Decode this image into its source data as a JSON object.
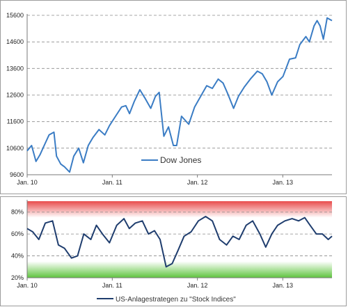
{
  "chart_data": [
    {
      "type": "line",
      "legend_position": "inside-lower-center",
      "grid": "horizontal-dashed",
      "colors": {
        "series": "#3a7cc4",
        "grid": "#8a8a8a",
        "axis": "#7a7a7a"
      },
      "ylim": [
        9600,
        15600
      ],
      "y_ticks": [
        9600,
        10600,
        11600,
        12600,
        13600,
        14600,
        15600
      ],
      "y_tick_labels": [
        "9600",
        "10600",
        "11600",
        "12600",
        "13600",
        "14600",
        "15600"
      ],
      "xlim": [
        "2010-01-01",
        "2013-07-31"
      ],
      "x_ticks": [
        "2010-01-01",
        "2011-01-01",
        "2012-01-01",
        "2013-01-01"
      ],
      "x_tick_labels": [
        "Jan. 10",
        "Jan. 11",
        "Jan. 12",
        "Jan. 13"
      ],
      "series": [
        {
          "name": "Dow Jones",
          "x": [
            "2010-01-01",
            "2010-01-20",
            "2010-02-08",
            "2010-02-25",
            "2010-03-15",
            "2010-04-05",
            "2010-04-26",
            "2010-05-07",
            "2010-05-25",
            "2010-06-10",
            "2010-07-02",
            "2010-07-20",
            "2010-08-10",
            "2010-08-30",
            "2010-09-20",
            "2010-10-10",
            "2010-11-05",
            "2010-11-30",
            "2010-12-20",
            "2011-01-15",
            "2011-02-10",
            "2011-02-28",
            "2011-03-16",
            "2011-04-05",
            "2011-04-29",
            "2011-05-20",
            "2011-06-15",
            "2011-07-05",
            "2011-07-21",
            "2011-08-10",
            "2011-08-30",
            "2011-09-20",
            "2011-10-04",
            "2011-10-25",
            "2011-11-25",
            "2011-12-20",
            "2012-01-15",
            "2012-02-10",
            "2012-03-05",
            "2012-03-30",
            "2012-04-20",
            "2012-05-10",
            "2012-06-04",
            "2012-06-25",
            "2012-07-20",
            "2012-08-15",
            "2012-09-14",
            "2012-10-05",
            "2012-10-25",
            "2012-11-15",
            "2012-12-10",
            "2013-01-02",
            "2013-01-30",
            "2013-02-25",
            "2013-03-15",
            "2013-04-10",
            "2013-04-25",
            "2013-05-15",
            "2013-05-28",
            "2013-06-10",
            "2013-06-24",
            "2013-07-10",
            "2013-07-31"
          ],
          "values": [
            10500,
            10700,
            10100,
            10350,
            10700,
            11100,
            11200,
            10300,
            10000,
            9900,
            9700,
            10300,
            10600,
            10050,
            10700,
            11000,
            11300,
            11100,
            11450,
            11800,
            12150,
            12200,
            11900,
            12350,
            12800,
            12500,
            12100,
            12550,
            12700,
            11050,
            11400,
            10700,
            10700,
            11800,
            11500,
            12150,
            12550,
            12950,
            12850,
            13200,
            13050,
            12650,
            12100,
            12550,
            12900,
            13200,
            13500,
            13400,
            13100,
            12600,
            13100,
            13300,
            13950,
            14000,
            14500,
            14800,
            14600,
            15200,
            15400,
            15200,
            14700,
            15500,
            15400
          ]
        }
      ]
    },
    {
      "type": "line",
      "legend_position": "bottom-center",
      "grid": "horizontal-dashed",
      "colors": {
        "series": "#1f3d6e",
        "band_high": "#e84c4c",
        "band_low": "#5ec43e",
        "grid": "#8a8a8a"
      },
      "ylim": [
        20,
        90
      ],
      "y_ticks": [
        20,
        40,
        60,
        80
      ],
      "y_tick_labels": [
        "20%",
        "40%",
        "60%",
        "80%"
      ],
      "xlim": [
        "2010-01-01",
        "2013-07-31"
      ],
      "x_ticks": [
        "2010-01-01",
        "2011-01-01",
        "2012-01-01",
        "2013-01-01"
      ],
      "x_tick_labels": [
        "Jan. 10",
        "Jan. 11",
        "Jan. 12",
        "Jan. 13"
      ],
      "series": [
        {
          "name": "US-Anlagestrategen zu \"Stock Indices\"",
          "x": [
            "2010-01-01",
            "2010-01-25",
            "2010-02-20",
            "2010-03-20",
            "2010-04-20",
            "2010-05-15",
            "2010-06-10",
            "2010-07-10",
            "2010-08-05",
            "2010-09-01",
            "2010-10-01",
            "2010-10-25",
            "2010-11-20",
            "2010-12-20",
            "2011-01-20",
            "2011-02-20",
            "2011-03-15",
            "2011-04-10",
            "2011-05-10",
            "2011-06-05",
            "2011-07-01",
            "2011-07-25",
            "2011-08-20",
            "2011-09-15",
            "2011-10-10",
            "2011-11-05",
            "2011-12-05",
            "2012-01-05",
            "2012-02-05",
            "2012-03-05",
            "2012-04-05",
            "2012-05-05",
            "2012-06-01",
            "2012-06-28",
            "2012-07-28",
            "2012-08-25",
            "2012-09-25",
            "2012-10-20",
            "2012-11-15",
            "2012-12-10",
            "2013-01-10",
            "2013-02-10",
            "2013-03-10",
            "2013-04-05",
            "2013-04-28",
            "2013-05-25",
            "2013-06-20",
            "2013-07-15",
            "2013-07-31"
          ],
          "values": [
            65,
            62,
            55,
            70,
            72,
            50,
            47,
            38,
            40,
            60,
            55,
            68,
            60,
            52,
            68,
            74,
            65,
            70,
            72,
            60,
            63,
            55,
            30,
            33,
            45,
            58,
            62,
            72,
            76,
            72,
            55,
            50,
            58,
            55,
            68,
            72,
            60,
            48,
            60,
            68,
            72,
            74,
            72,
            75,
            68,
            60,
            60,
            55,
            58
          ]
        }
      ]
    }
  ]
}
